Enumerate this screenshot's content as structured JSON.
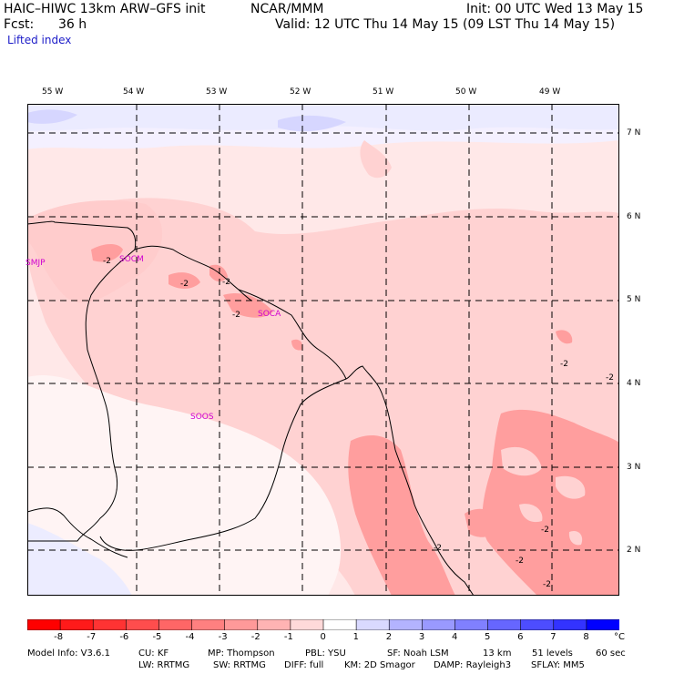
{
  "header": {
    "model_title": "HAIC–HIWC 13km ARW–GFS init",
    "org": "NCAR/MMM",
    "init": "Init: 00 UTC Wed 13 May 15",
    "fcst_label": "Fcst:",
    "fcst_value": "36 h",
    "valid": "Valid: 12 UTC Thu 14 May 15 (09 LST Thu 14 May 15)",
    "field": "Lifted index"
  },
  "map": {
    "lon_labels": [
      "55 W",
      "54 W",
      "53 W",
      "52 W",
      "51 W",
      "50 W",
      "49 W"
    ],
    "lat_labels": [
      "7 N",
      "6 N",
      "5 N",
      "4 N",
      "3 N",
      "2 N"
    ],
    "stations": [
      "SMJP",
      "SOCM",
      "SOCA",
      "SOOS"
    ],
    "contour_labels": [
      "-2",
      "-2",
      "-2",
      "-2",
      "-2",
      "-2",
      "-2",
      "-2",
      "-2",
      "-2"
    ]
  },
  "colorbar": {
    "ticks": [
      "-8",
      "-7",
      "-6",
      "-5",
      "-4",
      "-3",
      "-2",
      "-1",
      "0",
      "1",
      "2",
      "3",
      "4",
      "5",
      "6",
      "7",
      "8"
    ],
    "unit": "°C",
    "colors": [
      "#ff0000",
      "#ff1a1a",
      "#ff3333",
      "#ff4d4d",
      "#ff6666",
      "#ff8080",
      "#ff9999",
      "#ffb3b3",
      "#ffd9d9",
      "#ffffff",
      "#d9d9ff",
      "#b3b3ff",
      "#9999ff",
      "#8080ff",
      "#6666ff",
      "#4d4dff",
      "#3333ff",
      "#0000ff"
    ]
  },
  "model_info": {
    "line1": [
      "Model Info: V3.6.1",
      "CU: KF",
      "MP: Thompson",
      "PBL: YSU",
      "SF: Noah LSM",
      "13 km",
      "51 levels",
      "60 sec"
    ],
    "line2": [
      "LW: RRTMG",
      "SW: RRTMG",
      "DIFF: full",
      "KM: 2D Smagor",
      "DAMP: Rayleigh3",
      "SFLAY: MM5"
    ]
  }
}
